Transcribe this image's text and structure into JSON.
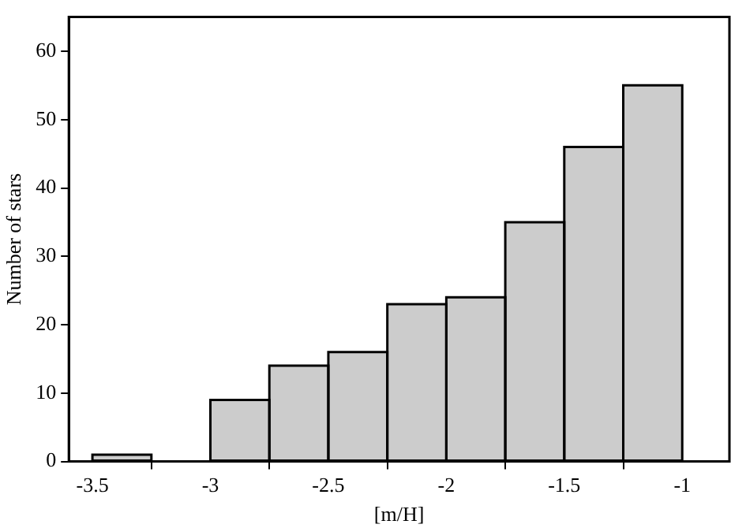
{
  "chart_data": {
    "type": "histogram",
    "xlabel": "[m/H]",
    "ylabel": "Number of stars",
    "bins": [
      -3.5,
      -3.25,
      -3,
      -2.75,
      -2.5,
      -2.25,
      -2,
      -1.75,
      -1.5,
      -1.25,
      -1
    ],
    "values": [
      1,
      0,
      9,
      14,
      16,
      23,
      24,
      35,
      46,
      55
    ],
    "color": "#cccccc",
    "xlim": [
      -3.6,
      -0.8
    ],
    "xticks": [
      -3.5,
      -3,
      -2.5,
      -2,
      -1.5,
      -1
    ],
    "ylim": [
      0,
      65
    ],
    "yticks": [
      0,
      10,
      20,
      30,
      40,
      50,
      60
    ],
    "grid": false,
    "legend": false
  }
}
